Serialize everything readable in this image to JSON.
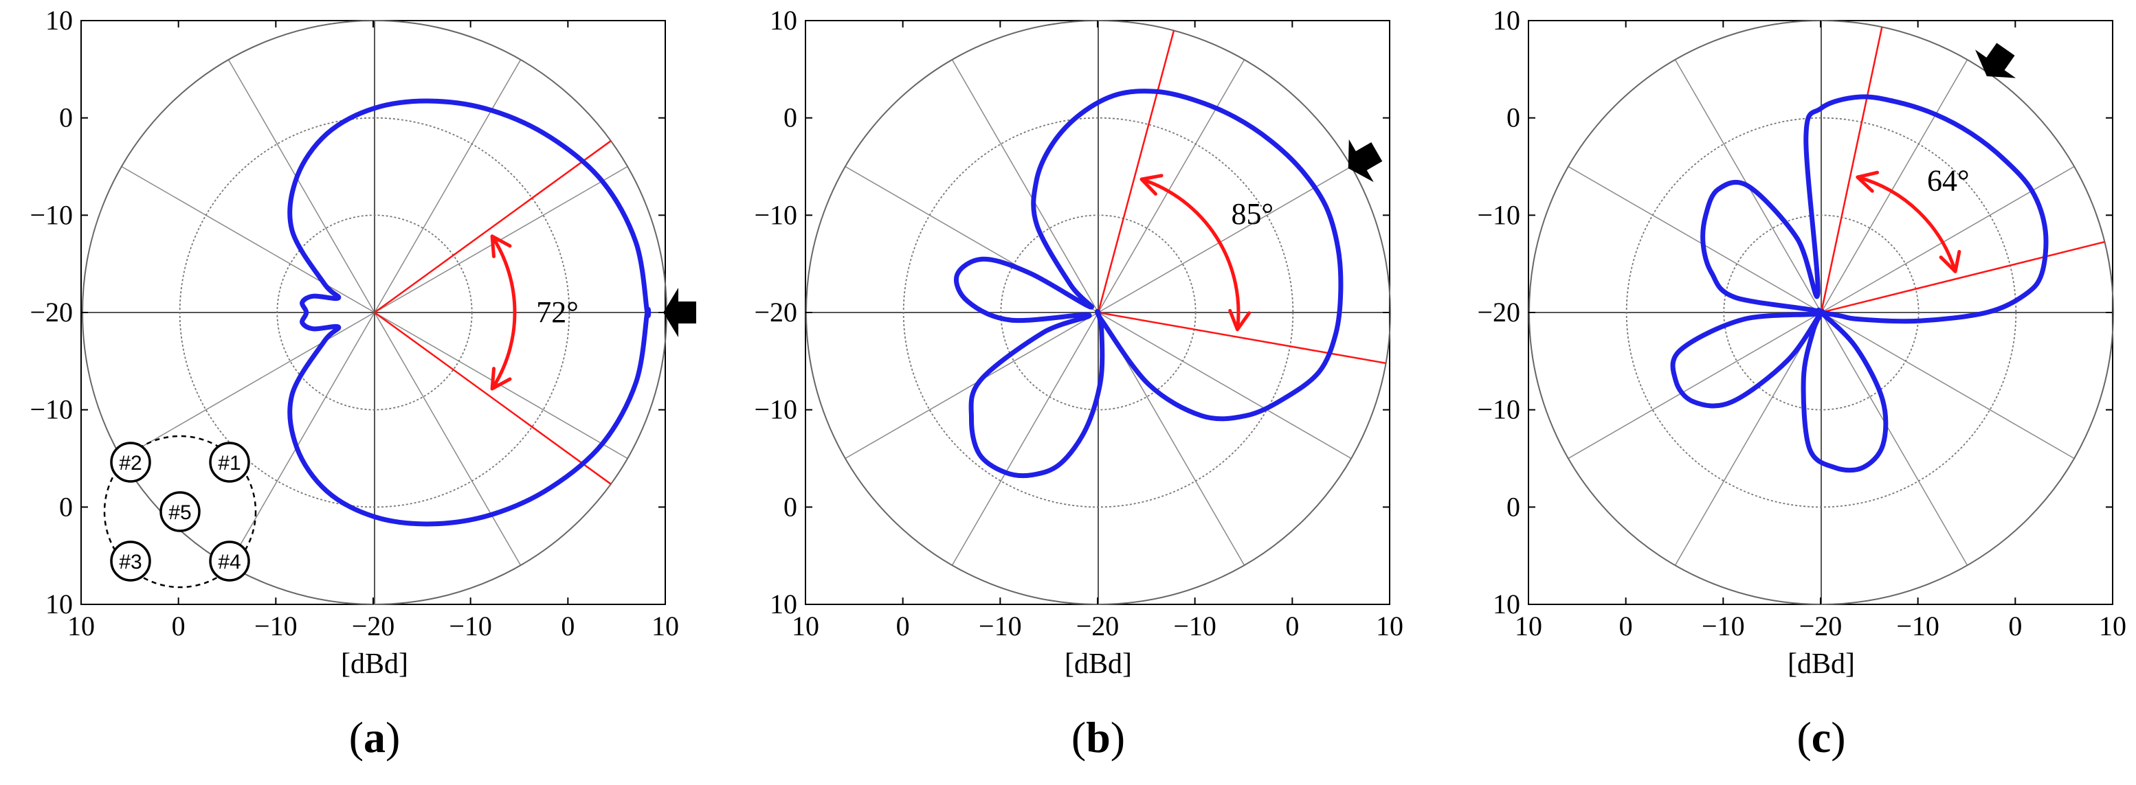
{
  "chart_data": [
    {
      "type": "polar",
      "panel_label": "a",
      "xlabel": "[dBd]",
      "radial_ticks": [
        "10",
        "0",
        "−10",
        "−20",
        "−10",
        "0",
        "10"
      ],
      "r_min": -20,
      "r_max": 10,
      "rings": [
        -10,
        0,
        10
      ],
      "beam_lines_deg": [
        36,
        -36
      ],
      "beamwidth_label": "72°",
      "pointer_direction_deg": 0,
      "pattern": {
        "angles_deg": [
          0,
          15,
          30,
          45,
          60,
          75,
          90,
          105,
          120,
          135,
          150,
          158,
          165,
          172,
          180,
          188,
          195,
          202,
          210,
          225,
          240,
          255,
          270,
          285,
          300,
          315,
          330,
          345,
          360
        ],
        "gain_dBd": [
          8.0,
          7.8,
          7.0,
          5.5,
          4.0,
          2.5,
          1.0,
          -1.0,
          -4.0,
          -8.0,
          -14.0,
          -16.0,
          -13.5,
          -12.5,
          -13.0,
          -12.5,
          -13.5,
          -16.0,
          -14.0,
          -8.0,
          -4.0,
          -1.0,
          1.0,
          2.5,
          4.0,
          5.5,
          7.0,
          7.8,
          8.0
        ]
      },
      "array_inset": {
        "elements": [
          "#1",
          "#2",
          "#3",
          "#4",
          "#5"
        ]
      }
    },
    {
      "type": "polar",
      "panel_label": "b",
      "xlabel": "[dBd]",
      "radial_ticks": [
        "10",
        "0",
        "−10",
        "−20",
        "−10",
        "0",
        "10"
      ],
      "r_min": -20,
      "r_max": 10,
      "rings": [
        -10,
        0,
        10
      ],
      "beam_lines_deg": [
        75,
        -10
      ],
      "beamwidth_label": "85°",
      "pointer_direction_deg": 30,
      "pattern": {
        "angles_deg": [
          -65,
          -55,
          -45,
          -35,
          -25,
          -15,
          -5,
          5,
          15,
          25,
          35,
          45,
          55,
          65,
          75,
          85,
          95,
          105,
          115,
          125,
          135,
          145,
          150,
          155,
          165,
          175,
          185,
          195,
          200,
          210,
          220,
          230,
          240,
          248,
          256,
          264,
          272,
          280,
          290
        ],
        "gain_dBd": [
          -19.0,
          -11.0,
          -5.0,
          -1.5,
          1.0,
          3.5,
          4.5,
          5.0,
          5.5,
          5.8,
          5.5,
          5.0,
          4.5,
          4.0,
          3.5,
          2.5,
          0.5,
          -2.0,
          -5.0,
          -9.0,
          -16.0,
          -19.0,
          -12.0,
          -7.0,
          -5.0,
          -6.5,
          -11.0,
          -19.0,
          -14.0,
          -6.0,
          -3.0,
          -1.0,
          -1.0,
          -2.0,
          -4.0,
          -8.0,
          -13.0,
          -18.0,
          -20.0
        ]
      }
    },
    {
      "type": "polar",
      "panel_label": "c",
      "xlabel": "[dBd]",
      "radial_ticks": [
        "10",
        "0",
        "−10",
        "−20",
        "−10",
        "0",
        "10"
      ],
      "r_min": -20,
      "r_max": 10,
      "rings": [
        -10,
        0,
        10
      ],
      "beam_lines_deg": [
        78,
        14
      ],
      "beamwidth_label": "64°",
      "pointer_direction_deg": 55,
      "pattern": {
        "angles_deg": [
          -10,
          -5,
          0,
          5,
          10,
          20,
          30,
          40,
          50,
          60,
          70,
          80,
          90,
          95,
          100,
          108,
          120,
          130,
          140,
          150,
          160,
          170,
          178,
          185,
          195,
          205,
          215,
          225,
          235,
          240,
          246,
          255,
          265,
          275,
          285,
          295,
          305,
          315,
          325,
          335,
          345,
          350
        ],
        "gain_dBd": [
          -16.0,
          -10.0,
          -3.0,
          1.0,
          3.0,
          4.5,
          5.0,
          4.5,
          4.0,
          3.5,
          3.0,
          2.5,
          1.0,
          -2.0,
          -18.0,
          -12.0,
          -5.0,
          -3.5,
          -4.5,
          -6.0,
          -8.0,
          -11.0,
          -20.0,
          -12.0,
          -5.0,
          -3.5,
          -4.0,
          -7.0,
          -14.0,
          -20.0,
          -18.0,
          -13.0,
          -6.0,
          -4.0,
          -3.5,
          -5.0,
          -9.0,
          -15.0,
          -20.0,
          -20.0,
          -20.0,
          -18.0
        ]
      }
    }
  ]
}
